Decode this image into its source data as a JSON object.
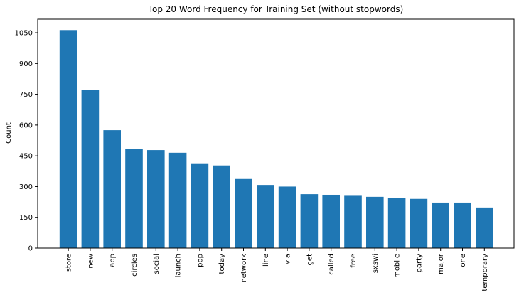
{
  "chart_data": {
    "type": "bar",
    "title": "Top 20 Word Frequency for Training Set (without stopwords)",
    "xlabel": "",
    "ylabel": "Count",
    "categories": [
      "store",
      "new",
      "app",
      "circles",
      "social",
      "launch",
      "pop",
      "today",
      "network",
      "line",
      "via",
      "get",
      "called",
      "free",
      "sxswi",
      "mobile",
      "party",
      "major",
      "one",
      "temporary"
    ],
    "values": [
      1063,
      770,
      575,
      485,
      478,
      465,
      410,
      403,
      337,
      308,
      300,
      263,
      260,
      255,
      250,
      245,
      240,
      222,
      222,
      198
    ],
    "yticks": [
      0,
      150,
      300,
      450,
      600,
      750,
      900,
      1050
    ],
    "ylim": [
      0,
      1116
    ],
    "bar_color": "#1f77b4",
    "grid": false,
    "legend": "none"
  }
}
